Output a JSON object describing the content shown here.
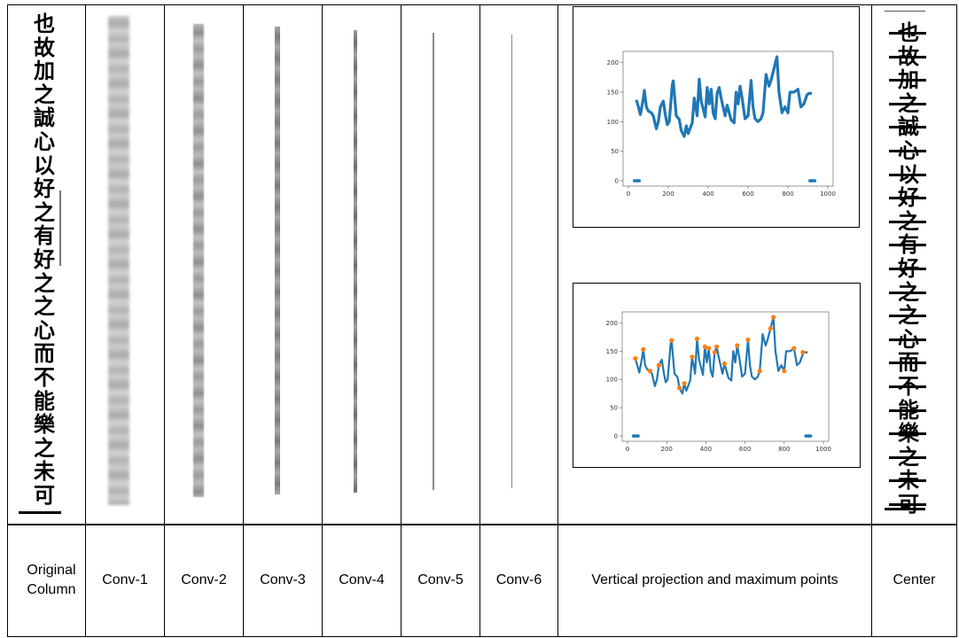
{
  "labels": {
    "original": "Original Column",
    "conv1": "Conv-1",
    "conv2": "Conv-2",
    "conv3": "Conv-3",
    "conv4": "Conv-4",
    "conv5": "Conv-5",
    "conv6": "Conv-6",
    "projection": "Vertical projection and maximum points",
    "center": "Center"
  },
  "original_chars": [
    "也",
    "故",
    "加",
    "之",
    "誠",
    "心",
    "以",
    "好",
    "之",
    "有",
    "好",
    "之",
    "之",
    "心",
    "而",
    "不",
    "能",
    "樂",
    "之",
    "未",
    "可"
  ],
  "center_chars": [
    "也",
    "故",
    "加",
    "之",
    "誠",
    "心",
    "以",
    "好",
    "之",
    "有",
    "好",
    "之",
    "之",
    "心",
    "而",
    "不",
    "能",
    "樂",
    "之",
    "未",
    "可"
  ],
  "chart_data": [
    {
      "type": "line",
      "xlim": [
        0,
        1000
      ],
      "ylim": [
        0,
        210
      ],
      "xticks": [
        "0",
        "200",
        "400",
        "600",
        "800",
        "1000"
      ],
      "yticks": [
        "0",
        "50",
        "100",
        "150",
        "200"
      ],
      "series": [
        {
          "x": [
            30,
            40,
            50,
            60,
            75,
            80,
            90,
            100,
            115,
            125,
            140,
            150,
            160,
            175,
            185,
            195,
            205,
            220,
            225,
            240,
            255,
            265,
            280,
            290,
            300,
            320,
            330,
            345,
            355,
            365,
            385,
            395,
            405,
            415,
            425,
            435,
            445,
            455,
            465,
            485,
            495,
            515,
            530,
            540,
            550,
            560,
            570,
            585,
            600,
            615,
            625,
            635,
            650,
            665,
            675,
            690,
            705,
            715,
            730,
            745,
            755,
            770,
            785,
            800,
            810,
            830,
            850,
            865,
            880,
            895,
            905,
            920,
            935
          ],
          "y": [
            0,
            137,
            125,
            112,
            140,
            153,
            125,
            118,
            115,
            110,
            88,
            100,
            125,
            135,
            112,
            95,
            100,
            162,
            169,
            110,
            104,
            85,
            75,
            93,
            80,
            98,
            140,
            110,
            172,
            135,
            108,
            158,
            130,
            155,
            115,
            105,
            148,
            158,
            140,
            110,
            128,
            103,
            98,
            150,
            130,
            160,
            140,
            105,
            110,
            170,
            125,
            105,
            100,
            105,
            115,
            180,
            160,
            170,
            190,
            210,
            150,
            115,
            125,
            115,
            150,
            150,
            155,
            125,
            130,
            145,
            148,
            148,
            0
          ]
        }
      ]
    },
    {
      "type": "line",
      "xlim": [
        0,
        1000
      ],
      "ylim": [
        0,
        210
      ],
      "xticks": [
        "0",
        "200",
        "400",
        "600",
        "800",
        "1000"
      ],
      "yticks": [
        "0",
        "50",
        "100",
        "150",
        "200"
      ],
      "series": [
        {
          "x": [
            30,
            40,
            50,
            60,
            75,
            80,
            90,
            100,
            115,
            125,
            140,
            150,
            160,
            175,
            185,
            195,
            205,
            220,
            225,
            240,
            255,
            265,
            280,
            290,
            300,
            320,
            330,
            345,
            355,
            365,
            385,
            395,
            405,
            415,
            425,
            435,
            445,
            455,
            465,
            485,
            495,
            515,
            530,
            540,
            550,
            560,
            570,
            585,
            600,
            615,
            625,
            635,
            650,
            665,
            675,
            690,
            705,
            715,
            730,
            745,
            755,
            770,
            785,
            800,
            810,
            830,
            850,
            865,
            880,
            895,
            905,
            920,
            935
          ],
          "y": [
            0,
            137,
            125,
            112,
            140,
            153,
            125,
            118,
            115,
            110,
            88,
            100,
            125,
            135,
            112,
            95,
            100,
            162,
            169,
            110,
            104,
            85,
            75,
            93,
            80,
            98,
            140,
            110,
            172,
            135,
            108,
            158,
            130,
            155,
            115,
            105,
            148,
            158,
            140,
            110,
            128,
            103,
            98,
            150,
            130,
            160,
            140,
            105,
            110,
            170,
            125,
            105,
            100,
            105,
            115,
            180,
            160,
            170,
            190,
            210,
            150,
            115,
            125,
            115,
            150,
            150,
            155,
            125,
            130,
            145,
            148,
            148,
            0
          ]
        },
        {
          "x": [
            40,
            80,
            115,
            160,
            225,
            265,
            290,
            330,
            355,
            395,
            415,
            445,
            455,
            495,
            560,
            615,
            675,
            730,
            745,
            800,
            850,
            895
          ],
          "y": [
            137,
            153,
            115,
            125,
            169,
            85,
            93,
            140,
            172,
            158,
            155,
            148,
            158,
            128,
            160,
            170,
            115,
            190,
            210,
            115,
            155,
            148
          ]
        }
      ]
    }
  ]
}
